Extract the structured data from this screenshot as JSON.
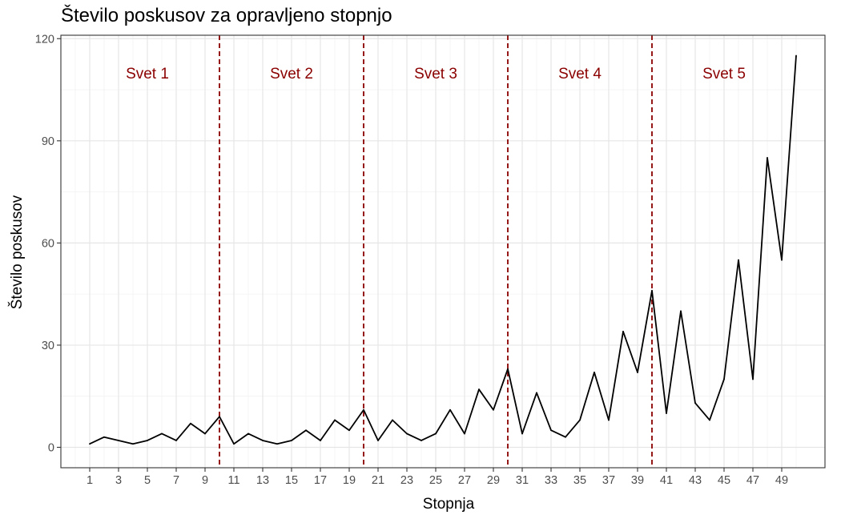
{
  "chart_data": {
    "type": "line",
    "title": "Število poskusov za opravljeno stopnjo",
    "xlabel": "Stopnja",
    "ylabel": "Število poskusov",
    "xlim": [
      -1,
      52
    ],
    "ylim": [
      -6,
      121
    ],
    "x_ticks": [
      1,
      3,
      5,
      7,
      9,
      11,
      13,
      15,
      17,
      19,
      21,
      23,
      25,
      27,
      29,
      31,
      33,
      35,
      37,
      39,
      41,
      43,
      45,
      47,
      49
    ],
    "y_ticks": [
      0,
      30,
      60,
      90,
      120
    ],
    "grid": true,
    "series": [
      {
        "x": [
          1,
          2,
          3,
          4,
          5,
          6,
          7,
          8,
          9,
          10,
          11,
          12,
          13,
          14,
          15,
          16,
          17,
          18,
          19,
          20,
          21,
          22,
          23,
          24,
          25,
          26,
          27,
          28,
          29,
          30,
          31,
          32,
          33,
          34,
          35,
          36,
          37,
          38,
          39,
          40,
          41,
          42,
          43,
          44,
          45,
          46,
          47,
          48,
          49,
          50
        ],
        "values": [
          1,
          3,
          2,
          1,
          2,
          4,
          2,
          7,
          4,
          9,
          1,
          4,
          2,
          1,
          2,
          5,
          2,
          8,
          5,
          11,
          2,
          8,
          4,
          2,
          4,
          11,
          4,
          17,
          11,
          23,
          4,
          16,
          5,
          3,
          8,
          22,
          8,
          34,
          22,
          46,
          10,
          40,
          13,
          8,
          20,
          55,
          20,
          85,
          55,
          115
        ],
        "color": "#000000"
      }
    ],
    "vlines": [
      10,
      20,
      30,
      40
    ],
    "vline_color": "#8b0000",
    "regions": [
      {
        "label": "Svet 1",
        "x": 5
      },
      {
        "label": "Svet 2",
        "x": 15
      },
      {
        "label": "Svet 3",
        "x": 25
      },
      {
        "label": "Svet 4",
        "x": 35
      },
      {
        "label": "Svet 5",
        "x": 45
      }
    ],
    "region_label_y": 110,
    "region_label_color": "#8b0000"
  }
}
